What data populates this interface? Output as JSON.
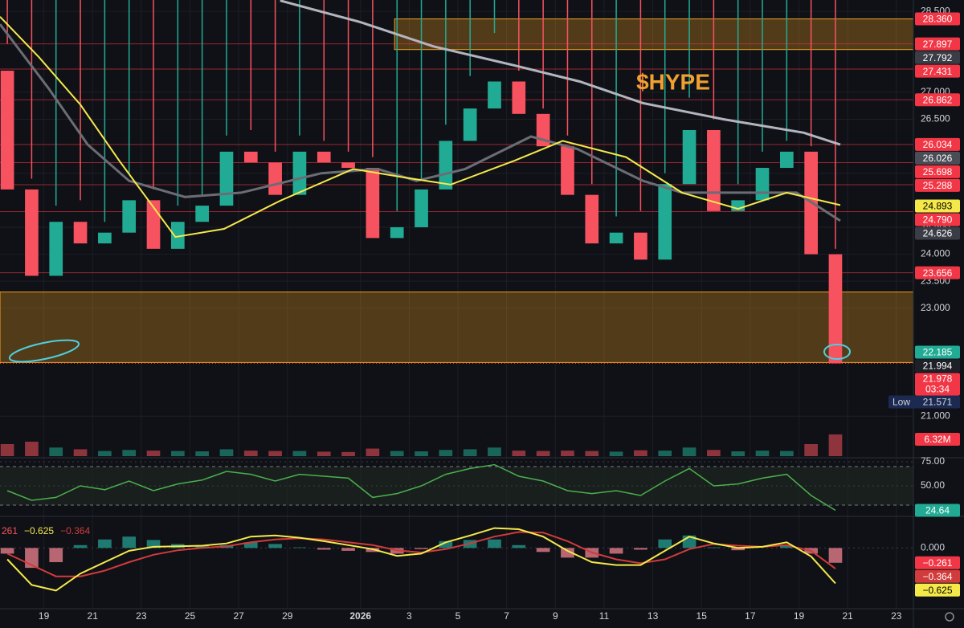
{
  "chart_data": [
    {
      "type": "candlestick",
      "annotation": "$HYPE",
      "x": [
        -1.5,
        -0.5,
        0.5,
        1.5,
        2.5,
        3.5,
        4.5,
        5.5,
        6.5,
        7.5,
        8.5,
        9.5,
        10.5,
        11.5,
        12.5,
        13.5,
        14.5,
        15.5,
        16.5,
        17.5,
        18.5,
        19.5,
        20.5,
        21.5,
        22.5,
        23.5,
        24.5,
        25.5,
        26.5,
        27.5,
        28.5,
        29.5,
        30.5,
        31.5,
        32.5
      ],
      "open": [
        27.4,
        25.2,
        23.6,
        24.6,
        24.2,
        24.4,
        25.0,
        24.1,
        24.6,
        24.9,
        25.9,
        25.7,
        25.1,
        25.9,
        25.7,
        25.6,
        24.3,
        24.5,
        25.2,
        26.1,
        26.7,
        27.2,
        26.6,
        26.0,
        25.1,
        24.2,
        24.4,
        23.9,
        25.3,
        26.3,
        24.8,
        25.0,
        25.6,
        25.9,
        24.0
      ],
      "high": [
        27.9,
        25.4,
        24.9,
        25.0,
        24.6,
        25.5,
        25.2,
        24.9,
        25.1,
        26.2,
        26.3,
        25.9,
        26.2,
        26.1,
        25.9,
        25.8,
        24.8,
        25.4,
        26.4,
        27.3,
        28.1,
        27.4,
        26.7,
        26.2,
        25.3,
        24.7,
        24.8,
        25.5,
        26.9,
        26.5,
        25.3,
        25.9,
        26.1,
        26.0,
        24.1
      ],
      "low": {
        "text": "Low",
        "value": 21.571,
        "label": "21.571",
        "color": "#1c2a52"
      },
      "close": [
        25.2,
        23.6,
        24.6,
        24.2,
        24.4,
        25.0,
        24.1,
        24.6,
        24.9,
        25.9,
        25.7,
        25.1,
        25.9,
        25.7,
        25.6,
        24.3,
        24.5,
        25.2,
        26.1,
        26.7,
        27.2,
        26.6,
        26.0,
        25.1,
        24.2,
        24.4,
        23.9,
        25.3,
        26.3,
        24.8,
        25.0,
        25.6,
        25.9,
        24.0,
        21.978
      ],
      "up_color": "#22ab94",
      "down_color": "#f7525f",
      "xlim": [
        -1.8,
        35.7
      ],
      "ylim": [
        20.75,
        28.71
      ],
      "xticks": [
        {
          "value": 0,
          "label": "19"
        },
        {
          "value": 2,
          "label": "21"
        },
        {
          "value": 4,
          "label": "23"
        },
        {
          "value": 6,
          "label": "25"
        },
        {
          "value": 8,
          "label": "27"
        },
        {
          "value": 10,
          "label": "29"
        },
        {
          "value": 13,
          "label": "2026"
        },
        {
          "value": 15,
          "label": "3"
        },
        {
          "value": 17,
          "label": "5"
        },
        {
          "value": 19,
          "label": "7"
        },
        {
          "value": 21,
          "label": "9"
        },
        {
          "value": 23,
          "label": "11"
        },
        {
          "value": 25,
          "label": "13"
        },
        {
          "value": 27,
          "label": "15"
        },
        {
          "value": 29,
          "label": "17"
        },
        {
          "value": 31,
          "label": "19"
        },
        {
          "value": 33,
          "label": "21"
        },
        {
          "value": 35,
          "label": "23"
        }
      ],
      "yticks": [
        {
          "value": 28.5,
          "label": "28.500"
        },
        {
          "value": 27,
          "label": "27.000"
        },
        {
          "value": 26.5,
          "label": "26.500"
        },
        {
          "value": 25.5,
          "label": "25.500"
        },
        {
          "value": 24.5,
          "label": "24.500"
        },
        {
          "value": 24,
          "label": "24.000"
        },
        {
          "value": 23.5,
          "label": "23.500"
        },
        {
          "value": 23,
          "label": "23.000"
        },
        {
          "value": 21,
          "label": "21.000"
        }
      ],
      "zones": [
        {
          "ylim": [
            27.792,
            28.36
          ],
          "xstart": 14.4,
          "color": "#f0a020"
        },
        {
          "ylim": [
            21.994,
            23.3
          ],
          "xstart": -1.8,
          "color": "#f0a020"
        }
      ],
      "lines": [
        {
          "color": "#b2b5be",
          "width": 3,
          "x": [
            9.7,
            13,
            16,
            19.3,
            22,
            24.6,
            27.9,
            31.2,
            32.7
          ],
          "values": [
            28.7,
            28.3,
            27.85,
            27.5,
            27.2,
            26.8,
            26.5,
            26.25,
            26.03
          ]
        },
        {
          "color": "#6a6d75",
          "width": 3,
          "x": [
            -1.8,
            0.2,
            1.8,
            3.5,
            5.8,
            8.1,
            11.4,
            13.7,
            15.3,
            17.3,
            20,
            21.9,
            24.6,
            26.2,
            29.2,
            30.9,
            32.7
          ],
          "values": [
            28.26,
            27.07,
            26.03,
            25.36,
            25.06,
            25.14,
            25.5,
            25.58,
            25.36,
            25.58,
            26.18,
            25.95,
            25.36,
            25.14,
            25.14,
            25.14,
            24.62
          ]
        },
        {
          "color": "#f5e94a",
          "width": 2,
          "x": [
            -1.8,
            -0.2,
            1.5,
            3.1,
            5.4,
            7.4,
            9.7,
            12.7,
            14.7,
            16.7,
            19.3,
            21.3,
            23.9,
            26.2,
            28.5,
            30.5,
            32.7
          ],
          "values": [
            28.4,
            27.65,
            26.77,
            25.73,
            24.32,
            24.47,
            24.99,
            25.58,
            25.43,
            25.29,
            25.73,
            26.1,
            25.8,
            25.14,
            24.84,
            25.14,
            24.91
          ]
        }
      ],
      "levels": [
        {
          "value": 28.36,
          "label": "28.360",
          "color": "#f23645"
        },
        {
          "value": 27.897,
          "label": "27.897",
          "color": "#f23645",
          "line": true
        },
        {
          "value": 27.792,
          "label": "27.792",
          "color": "#3a3d45"
        },
        {
          "value": 27.431,
          "label": "27.431",
          "color": "#f23645",
          "line": true
        },
        {
          "value": 26.862,
          "label": "26.862",
          "color": "#f23645",
          "line": true
        },
        {
          "value": 26.034,
          "label": "26.034",
          "color": "#f23645",
          "line": true
        },
        {
          "value": 26.026,
          "label": "26.026",
          "color": "#4a4d55"
        },
        {
          "value": 25.698,
          "label": "25.698",
          "color": "#f23645",
          "line": true
        },
        {
          "value": 25.288,
          "label": "25.288",
          "color": "#f23645",
          "line": true
        },
        {
          "value": 24.893,
          "label": "24.893",
          "color": "#f5e94a",
          "text_color": "#000000"
        },
        {
          "value": 24.79,
          "label": "24.790",
          "color": "#f23645",
          "line": true
        },
        {
          "value": 24.626,
          "label": "24.626",
          "color": "#3a3d45"
        },
        {
          "value": 23.656,
          "label": "23.656",
          "color": "#f23645",
          "line": true
        },
        {
          "value": 22.185,
          "label": "22.185",
          "color": "#22ab94"
        },
        {
          "value": 21.994,
          "label": "21.994",
          "color": "#1e2028"
        }
      ],
      "last": {
        "value": 21.978,
        "label": "21.978",
        "countdown": "03:34",
        "color": "#f23645"
      }
    },
    {
      "type": "volume",
      "values": [
        3.5,
        4.2,
        2.5,
        2,
        1.5,
        1.8,
        1.6,
        1.5,
        1.4,
        2,
        1.6,
        1.5,
        1.5,
        1.3,
        1.2,
        2.2,
        1.5,
        1.4,
        1.8,
        2,
        2.5,
        1.6,
        1.5,
        1.6,
        1.5,
        1.3,
        1.7,
        1.6,
        2.5,
        1.8,
        1.4,
        1.6,
        1.5,
        3.5,
        6.32
      ],
      "ylim": [
        0,
        7
      ],
      "last": {
        "value": 6.32,
        "label": "6.32M",
        "color": "#f23645"
      }
    },
    {
      "type": "rsi",
      "color": "#4caf50",
      "values": [
        45,
        35,
        38,
        50,
        46,
        55,
        45,
        52,
        56,
        65,
        62,
        55,
        62,
        60,
        58,
        38,
        42,
        50,
        62,
        68,
        72,
        60,
        55,
        45,
        42,
        45,
        40,
        55,
        68,
        50,
        52,
        58,
        62,
        40,
        24.64
      ],
      "ylim": [
        19.2,
        79.2
      ],
      "yticks": [
        {
          "value": 75,
          "label": "75.00"
        },
        {
          "value": 50,
          "label": "50.00"
        }
      ],
      "band": [
        30,
        70
      ],
      "last": {
        "value": 24.64,
        "label": "24.64",
        "color": "#22ab94"
      }
    },
    {
      "type": "macd",
      "header": [
        "261",
        "−0.625",
        "−0.364"
      ],
      "macd": {
        "color": "#f5e94a",
        "values": [
          -0.2,
          -0.65,
          -0.75,
          -0.45,
          -0.25,
          -0.05,
          0.02,
          0.03,
          0.04,
          0.08,
          0.2,
          0.22,
          0.18,
          0.12,
          0.05,
          -0.02,
          -0.14,
          -0.1,
          0.1,
          0.22,
          0.35,
          0.33,
          0.2,
          -0.05,
          -0.25,
          -0.3,
          -0.3,
          -0.05,
          0.2,
          0.08,
          0.0,
          0.02,
          0.1,
          -0.15,
          -0.625
        ]
      },
      "signal": {
        "color": "#d13b3b",
        "values": [
          -0.1,
          -0.3,
          -0.5,
          -0.5,
          -0.4,
          -0.25,
          -0.12,
          -0.04,
          0.0,
          0.03,
          0.1,
          0.15,
          0.17,
          0.15,
          0.1,
          0.05,
          -0.04,
          -0.08,
          -0.02,
          0.08,
          0.2,
          0.28,
          0.27,
          0.12,
          -0.08,
          -0.2,
          -0.27,
          -0.2,
          -0.02,
          0.07,
          0.04,
          0.02,
          0.05,
          -0.05,
          -0.364
        ]
      },
      "histogram": {
        "values": [
          -0.1,
          -0.35,
          -0.25,
          0.05,
          0.15,
          0.2,
          0.14,
          0.07,
          0.04,
          0.05,
          0.1,
          0.07,
          0.01,
          -0.03,
          -0.05,
          -0.07,
          -0.1,
          -0.02,
          0.12,
          0.14,
          0.15,
          0.05,
          -0.07,
          -0.17,
          -0.17,
          -0.1,
          -0.03,
          0.15,
          0.22,
          0.01,
          -0.04,
          0.0,
          0.05,
          -0.1,
          -0.261
        ]
      },
      "ylim": [
        -1.07,
        0.528
      ],
      "yticks": [
        {
          "value": 0,
          "label": "0.000"
        }
      ],
      "badges": [
        {
          "value": -0.261,
          "label": "−0.261",
          "color": "#f23645"
        },
        {
          "value": -0.364,
          "label": "−0.364",
          "color": "#d13b3b"
        },
        {
          "value": -0.625,
          "label": "−0.625",
          "color": "#f5e94a",
          "text_color": "#000000"
        }
      ]
    }
  ]
}
